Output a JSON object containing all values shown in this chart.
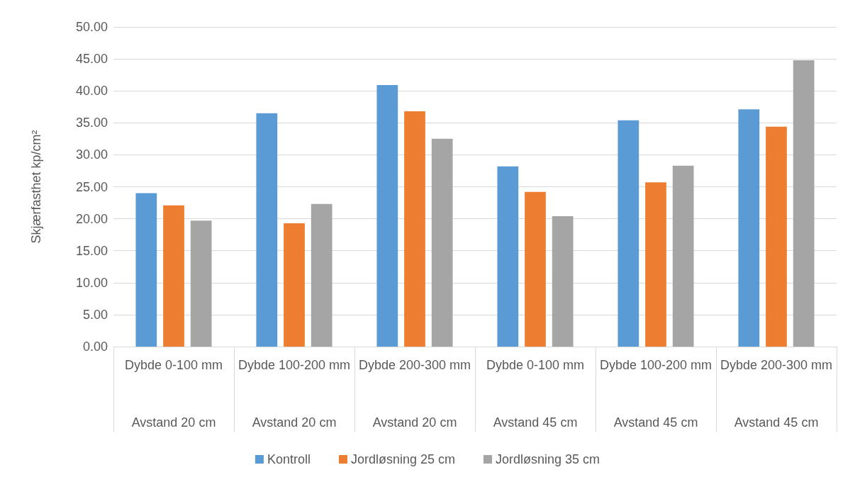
{
  "chart_data": {
    "type": "bar",
    "ylabel": "Skjærfasthet kp/cm²",
    "categories": [
      "Dybde 0-100 mm\nAvstand 20 cm",
      "Dybde 100-200 mm\nAvstand 20 cm",
      "Dybde 200-300 mm\nAvstand 20 cm",
      "Dybde 0-100 mm\nAvstand 45 cm",
      "Dybde 100-200 mm\nAvstand 45 cm",
      "Dybde 200-300 mm\nAvstand 45 cm"
    ],
    "series": [
      {
        "name": "Kontroll",
        "color": "#5b9bd5",
        "values": [
          24.0,
          36.5,
          40.9,
          28.2,
          35.4,
          37.1
        ]
      },
      {
        "name": "Jordløsning 25 cm",
        "color": "#ed7d31",
        "values": [
          22.1,
          19.3,
          36.8,
          24.2,
          25.7,
          34.4
        ]
      },
      {
        "name": "Jordløsning 35 cm",
        "color": "#a5a5a5",
        "values": [
          19.7,
          22.3,
          32.5,
          20.4,
          28.3,
          44.8
        ]
      }
    ],
    "ylim": [
      0,
      50
    ],
    "yticks": [
      {
        "value": 0,
        "label": "0.00"
      },
      {
        "value": 5,
        "label": "5.00"
      },
      {
        "value": 10,
        "label": "10.00"
      },
      {
        "value": 15,
        "label": "15.00"
      },
      {
        "value": 20,
        "label": "20.00"
      },
      {
        "value": 25,
        "label": "25.00"
      },
      {
        "value": 30,
        "label": "30.00"
      },
      {
        "value": 35,
        "label": "35.00"
      },
      {
        "value": 40,
        "label": "40.00"
      },
      {
        "value": 45,
        "label": "45.00"
      },
      {
        "value": 50,
        "label": "50.00"
      }
    ],
    "grid": "y",
    "legend": "bottom"
  }
}
